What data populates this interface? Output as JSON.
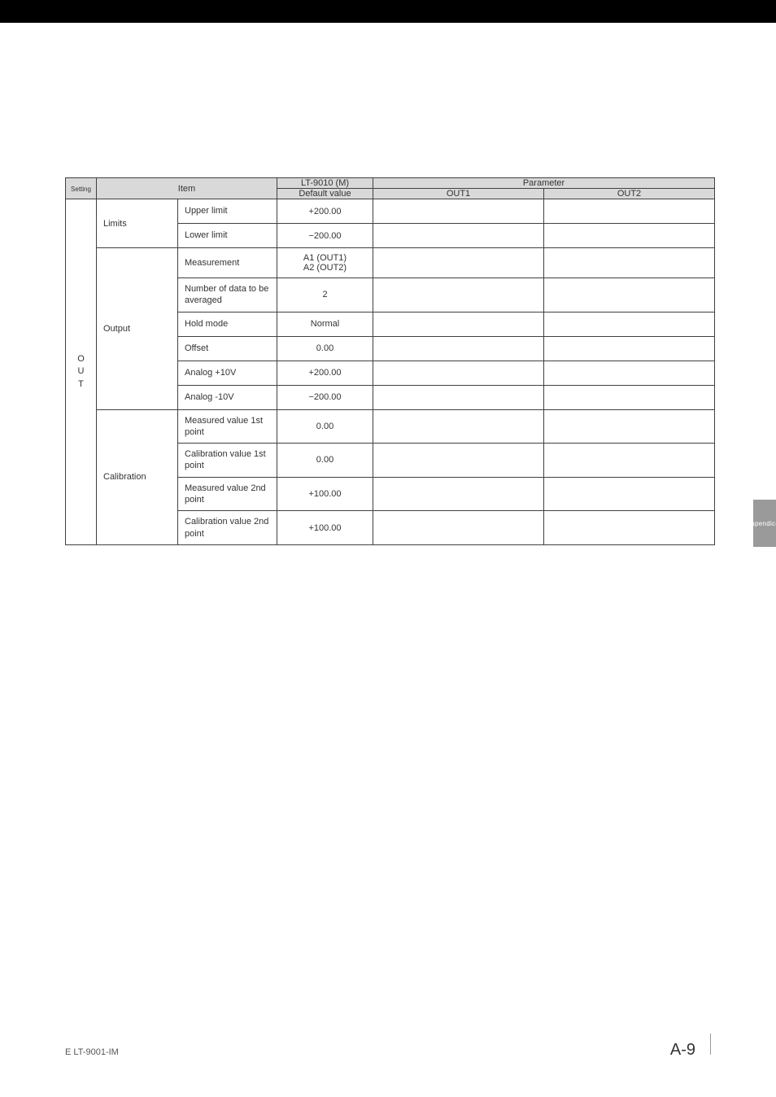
{
  "header": {
    "setting": "Setting",
    "item": "Item",
    "lt_model": "LT-9010 (M)",
    "default_value": "Default value",
    "parameter": "Parameter",
    "out1": "OUT1",
    "out2": "OUT2"
  },
  "setting_group": "O\nU\nT",
  "groups": {
    "limits": {
      "label": "Limits",
      "rows": [
        {
          "item": "Upper limit",
          "default": "+200.00"
        },
        {
          "item": "Lower limit",
          "default": "−200.00"
        }
      ]
    },
    "output": {
      "label": "Output",
      "rows": [
        {
          "item": "Measurement",
          "default": "A1 (OUT1)\nA2 (OUT2)"
        },
        {
          "item": "Number of data to be averaged",
          "default": "2"
        },
        {
          "item": "Hold mode",
          "default": "Normal"
        },
        {
          "item": "Offset",
          "default": "0.00"
        },
        {
          "item": "Analog +10V",
          "default": "+200.00"
        },
        {
          "item": "Analog -10V",
          "default": "−200.00"
        }
      ]
    },
    "calibration": {
      "label": "Calibration",
      "rows": [
        {
          "item": "Measured value 1st point",
          "default": "0.00"
        },
        {
          "item": "Calibration value 1st point",
          "default": "0.00"
        },
        {
          "item": "Measured value 2nd point",
          "default": "+100.00"
        },
        {
          "item": "Calibration value 2nd point",
          "default": "+100.00"
        }
      ]
    }
  },
  "sidebar": {
    "label": "Appendices"
  },
  "footer": {
    "left": "E LT-9001-IM",
    "right": "A-9"
  },
  "colors": {
    "topbar": "#000000",
    "header_bg": "#d9d9d9",
    "border": "#404040",
    "text": "#333333",
    "sidebar_bg": "#9a9a9a",
    "sidebar_text": "#ffffff",
    "page_bg": "#ffffff"
  }
}
